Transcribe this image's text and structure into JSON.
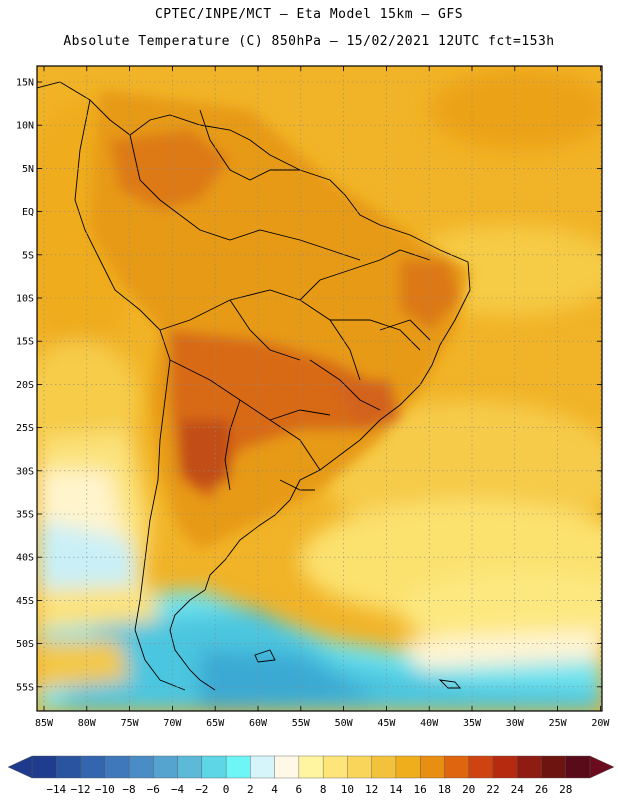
{
  "header": {
    "line1": "CPTEC/INPE/MCT –  Eta Model 15km – GFS",
    "line2": "Absolute Temperature (C) 850hPa – 15/02/2021 12UTC fct=153h"
  },
  "map": {
    "lat_labels": [
      "15N",
      "10N",
      "5N",
      "EQ",
      "5S",
      "10S",
      "15S",
      "20S",
      "25S",
      "30S",
      "35S",
      "40S",
      "45S",
      "50S",
      "55S"
    ],
    "lon_labels": [
      "85W",
      "80W",
      "75W",
      "70W",
      "65W",
      "60W",
      "55W",
      "50W",
      "45W",
      "40W",
      "35W",
      "30W",
      "25W",
      "20W"
    ]
  },
  "colorbar": {
    "labels": [
      "-14",
      "-12",
      "-10",
      "-8",
      "-6",
      "-4",
      "-2",
      "0",
      "2",
      "4",
      "6",
      "8",
      "10",
      "12",
      "14",
      "16",
      "18",
      "20",
      "22",
      "24",
      "26",
      "28"
    ],
    "colors": [
      "#1f3c8f",
      "#2a54a0",
      "#3366ae",
      "#3f79bb",
      "#4a8cc6",
      "#55a3cf",
      "#5cbad8",
      "#5ed6e6",
      "#6ef5f5",
      "#d5f5fb",
      "#fff8e6",
      "#fff5a0",
      "#fde57a",
      "#f9d55a",
      "#f3c23c",
      "#efaf1d",
      "#e88e12",
      "#e0650f",
      "#cf4310",
      "#b62a10",
      "#8e1c12",
      "#6d1410",
      "#5a0b1a"
    ],
    "arrow_left_color": "#1e3a8c",
    "arrow_right_color": "#6a0b1e"
  }
}
